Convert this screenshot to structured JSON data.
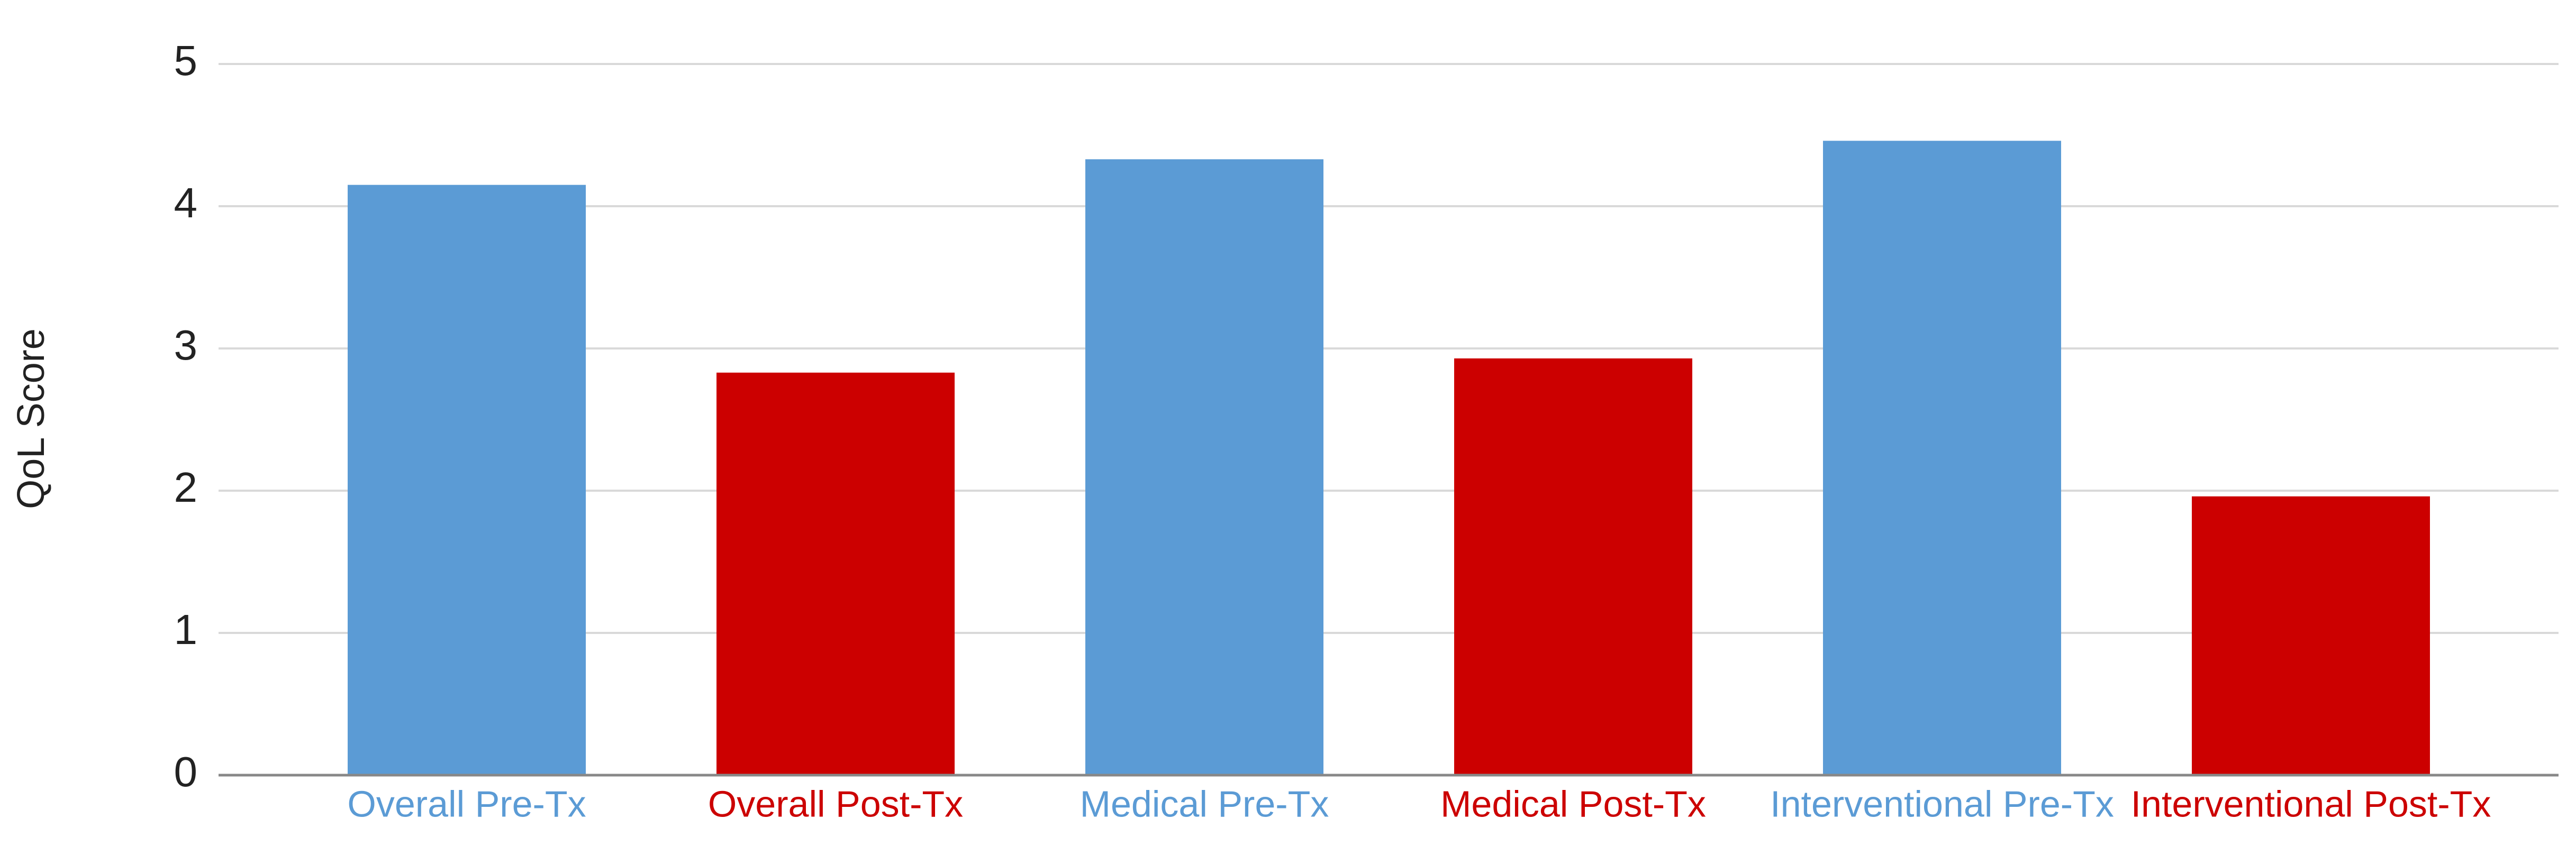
{
  "chart_data": {
    "type": "bar",
    "y_label": "QoL Score",
    "categories": [
      "Overall Pre-Tx",
      "Overall Post-Tx",
      "Medical Pre-Tx",
      "Medical Post-Tx",
      "Interventional Pre-Tx",
      "Interventional Post-Tx"
    ],
    "values": [
      4.15,
      2.83,
      4.33,
      2.93,
      4.46,
      1.96
    ],
    "colors": [
      "#5b9bd5",
      "#cc0000",
      "#5b9bd5",
      "#cc0000",
      "#5b9bd5",
      "#cc0000"
    ],
    "ylim": [
      0,
      5
    ],
    "yticks": [
      0,
      1,
      2,
      3,
      4,
      5
    ],
    "grid": true
  }
}
